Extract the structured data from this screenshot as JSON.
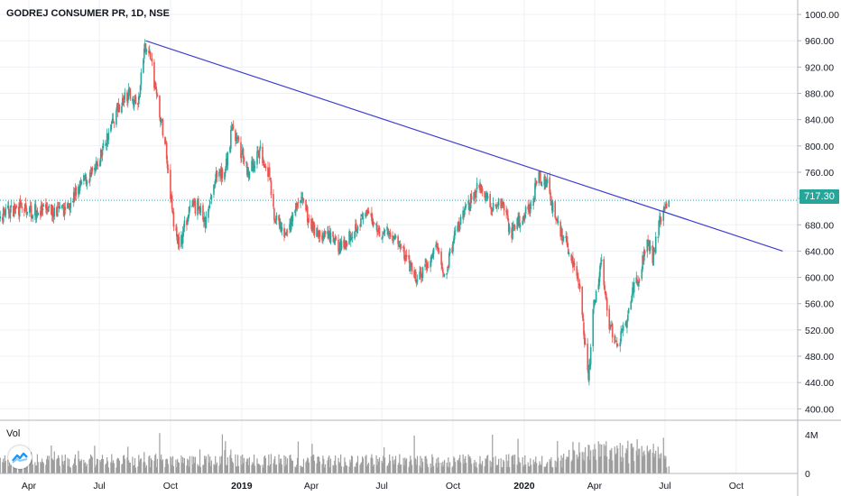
{
  "chart_data": {
    "type": "candlestick",
    "title": "GODREJ CONSUMER PR, 1D, NSE",
    "last_price": "717.30",
    "price_ylim": [
      384,
      1022
    ],
    "price_ticks": [
      "1000.00",
      "960.00",
      "920.00",
      "880.00",
      "840.00",
      "800.00",
      "760.00",
      "720.00",
      "680.00",
      "640.00",
      "600.00",
      "560.00",
      "520.00",
      "480.00",
      "440.00",
      "400.00"
    ],
    "x_ticks": [
      "Apr",
      "Jul",
      "Oct",
      "2019",
      "Apr",
      "Jul",
      "Oct",
      "2020",
      "Apr",
      "Jul",
      "Oct"
    ],
    "x_range": [
      "2018-02",
      "2020-12"
    ],
    "price_path": [
      [
        "2018-02-15",
        690
      ],
      [
        "2018-03-15",
        705
      ],
      [
        "2018-04-15",
        700
      ],
      [
        "2018-05-15",
        700
      ],
      [
        "2018-06-10",
        745
      ],
      [
        "2018-06-25",
        760
      ],
      [
        "2018-07-10",
        810
      ],
      [
        "2018-07-25",
        860
      ],
      [
        "2018-08-10",
        880
      ],
      [
        "2018-08-20",
        860
      ],
      [
        "2018-08-28",
        945
      ],
      [
        "2018-09-03",
        950
      ],
      [
        "2018-09-15",
        860
      ],
      [
        "2018-09-25",
        800
      ],
      [
        "2018-10-05",
        680
      ],
      [
        "2018-10-12",
        650
      ],
      [
        "2018-10-25",
        700
      ],
      [
        "2018-11-05",
        710
      ],
      [
        "2018-11-15",
        680
      ],
      [
        "2018-11-28",
        750
      ],
      [
        "2018-12-10",
        760
      ],
      [
        "2018-12-20",
        830
      ],
      [
        "2018-12-28",
        800
      ],
      [
        "2019-01-10",
        760
      ],
      [
        "2019-01-25",
        790
      ],
      [
        "2019-02-05",
        760
      ],
      [
        "2019-02-12",
        690
      ],
      [
        "2019-02-28",
        660
      ],
      [
        "2019-03-10",
        700
      ],
      [
        "2019-03-18",
        720
      ],
      [
        "2019-03-28",
        690
      ],
      [
        "2019-04-10",
        665
      ],
      [
        "2019-04-25",
        660
      ],
      [
        "2019-05-10",
        645
      ],
      [
        "2019-06-01",
        685
      ],
      [
        "2019-06-15",
        695
      ],
      [
        "2019-06-28",
        670
      ],
      [
        "2019-07-15",
        665
      ],
      [
        "2019-08-01",
        630
      ],
      [
        "2019-08-15",
        595
      ],
      [
        "2019-08-28",
        615
      ],
      [
        "2019-09-10",
        650
      ],
      [
        "2019-09-20",
        600
      ],
      [
        "2019-10-05",
        670
      ],
      [
        "2019-10-15",
        695
      ],
      [
        "2019-10-25",
        720
      ],
      [
        "2019-11-05",
        740
      ],
      [
        "2019-11-20",
        710
      ],
      [
        "2019-12-05",
        715
      ],
      [
        "2019-12-15",
        665
      ],
      [
        "2019-12-28",
        690
      ],
      [
        "2020-01-10",
        710
      ],
      [
        "2020-01-20",
        755
      ],
      [
        "2020-01-31",
        740
      ],
      [
        "2020-02-10",
        690
      ],
      [
        "2020-02-25",
        650
      ],
      [
        "2020-03-05",
        620
      ],
      [
        "2020-03-15",
        560
      ],
      [
        "2020-03-24",
        445
      ],
      [
        "2020-03-30",
        550
      ],
      [
        "2020-04-10",
        620
      ],
      [
        "2020-04-18",
        540
      ],
      [
        "2020-04-28",
        500
      ],
      [
        "2020-05-10",
        520
      ],
      [
        "2020-05-18",
        570
      ],
      [
        "2020-05-28",
        600
      ],
      [
        "2020-06-08",
        660
      ],
      [
        "2020-06-15",
        630
      ],
      [
        "2020-06-25",
        690
      ],
      [
        "2020-07-06",
        717.3
      ]
    ],
    "trendline": {
      "start": [
        "2018-08-30",
        960
      ],
      "end": [
        "2020-11-30",
        640
      ]
    },
    "volume_label": "Vol",
    "volume_ylim": [
      0,
      5.4
    ],
    "volume_ticks": [
      "4M",
      "0"
    ],
    "volume_unit": "M",
    "colors": {
      "up": "#26a69a",
      "down": "#ef5350",
      "trendline": "#3f3fd0",
      "price_line": "#26a69a",
      "volume": "#9e9e9e",
      "grid": "#edf0f4",
      "axis": "#131722"
    },
    "grid": true
  },
  "icons": {
    "logo": "tradingview-logo-icon"
  }
}
